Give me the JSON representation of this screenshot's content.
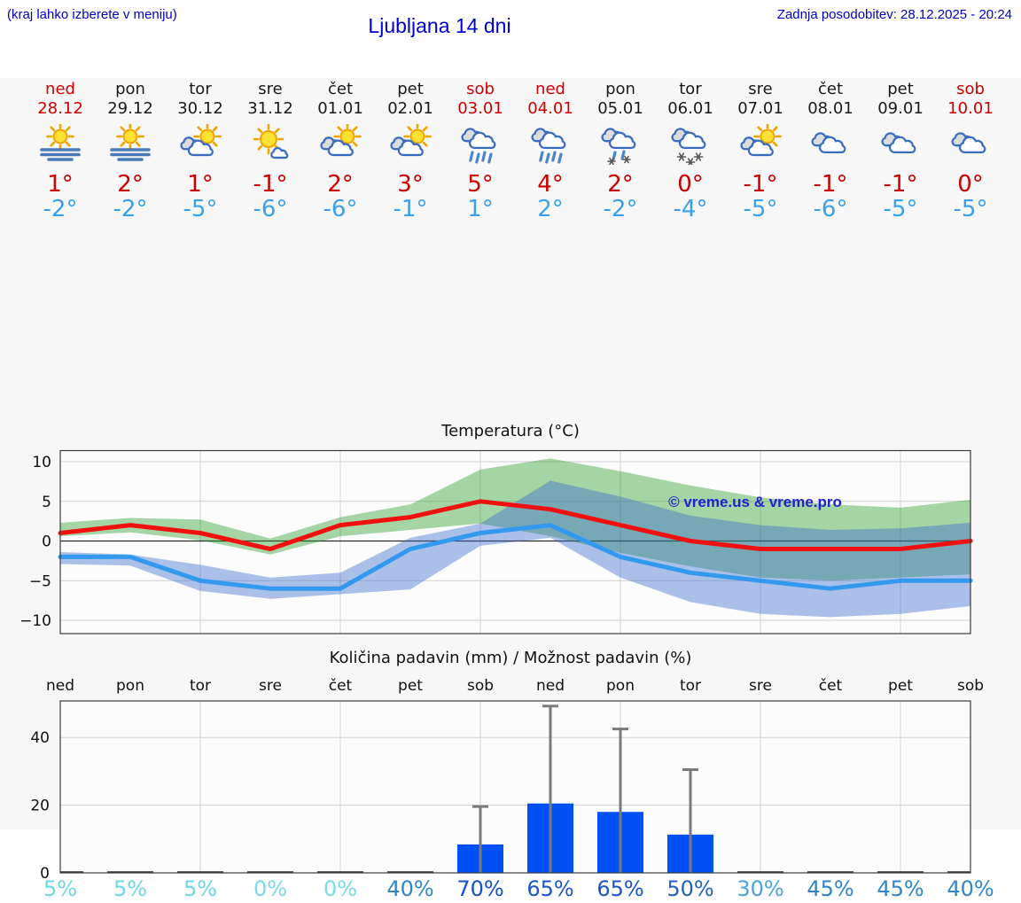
{
  "header": {
    "hint": "(kraj lahko izberete v meniju)",
    "title": "Ljubljana 14 dni",
    "updated": "Zadnja posodobitev: 28.12.2025 - 20:24",
    "text_color": "#0000cc"
  },
  "colors": {
    "weekend_red": "#cc0000",
    "tmax_red": "#cc0000",
    "tmin_blue": "#3aa0ee",
    "panel_bg": "#f7f7f8",
    "plot_bg": "#fcfcfc",
    "grid": "#cfcfcf",
    "frame": "#3c3c3c"
  },
  "days": [
    {
      "name": "ned",
      "date": "28.12",
      "weekend": true,
      "icon": "fog",
      "tmax": "1°",
      "tmin": "-2°"
    },
    {
      "name": "pon",
      "date": "29.12",
      "weekend": false,
      "icon": "fog",
      "tmax": "2°",
      "tmin": "-2°"
    },
    {
      "name": "tor",
      "date": "30.12",
      "weekend": false,
      "icon": "partly-cloudy",
      "tmax": "1°",
      "tmin": "-5°"
    },
    {
      "name": "sre",
      "date": "31.12",
      "weekend": false,
      "icon": "mostly-sunny",
      "tmax": "-1°",
      "tmin": "-6°"
    },
    {
      "name": "čet",
      "date": "01.01",
      "weekend": false,
      "icon": "partly-cloudy",
      "tmax": "2°",
      "tmin": "-6°"
    },
    {
      "name": "pet",
      "date": "02.01",
      "weekend": false,
      "icon": "partly-cloudy",
      "tmax": "3°",
      "tmin": "-1°"
    },
    {
      "name": "sob",
      "date": "03.01",
      "weekend": true,
      "icon": "rain",
      "tmax": "5°",
      "tmin": "1°"
    },
    {
      "name": "ned",
      "date": "04.01",
      "weekend": true,
      "icon": "rain",
      "tmax": "4°",
      "tmin": "2°"
    },
    {
      "name": "pon",
      "date": "05.01",
      "weekend": false,
      "icon": "sleet",
      "tmax": "2°",
      "tmin": "-2°"
    },
    {
      "name": "tor",
      "date": "06.01",
      "weekend": false,
      "icon": "snow",
      "tmax": "0°",
      "tmin": "-4°"
    },
    {
      "name": "sre",
      "date": "07.01",
      "weekend": false,
      "icon": "partly-cloudy",
      "tmax": "-1°",
      "tmin": "-5°"
    },
    {
      "name": "čet",
      "date": "08.01",
      "weekend": false,
      "icon": "cloudy",
      "tmax": "-1°",
      "tmin": "-6°"
    },
    {
      "name": "pet",
      "date": "09.01",
      "weekend": false,
      "icon": "cloudy",
      "tmax": "-1°",
      "tmin": "-5°"
    },
    {
      "name": "sob",
      "date": "10.01",
      "weekend": true,
      "icon": "cloudy",
      "tmax": "0°",
      "tmin": "-5°"
    }
  ],
  "chart_data": [
    {
      "type": "line",
      "title": "Temperatura (°C)",
      "watermark": "© vreme.us & vreme.pro",
      "watermark_color": "#2222cc",
      "x_days": [
        "ned 28.12",
        "pon 29.12",
        "tor 30.12",
        "sre 31.12",
        "čet 01.01",
        "pet 02.01",
        "sob 03.01",
        "ned 04.01",
        "pon 05.01",
        "tor 06.01",
        "sre 07.01",
        "čet 08.01",
        "pet 09.01",
        "sob 10.01"
      ],
      "ylim": [
        -11.6,
        11.4
      ],
      "yticks": [
        10,
        5,
        0,
        -5,
        -10
      ],
      "grid_day_indices": [
        2,
        4,
        6,
        8,
        10,
        12
      ],
      "series": [
        {
          "name": "max-temp",
          "color": "#f01010",
          "values": [
            1,
            2,
            1,
            -1,
            2,
            3,
            5,
            4,
            2,
            0,
            -1,
            -1,
            -1,
            0
          ]
        },
        {
          "name": "min-temp",
          "color": "#3399ee",
          "values": [
            -2,
            -2,
            -5,
            -6,
            -6,
            -1,
            1,
            2,
            -2,
            -4,
            -5,
            -6,
            -5,
            -5
          ]
        }
      ],
      "bands": [
        {
          "name": "max-spread",
          "color": "rgba(34,153,34,0.4)",
          "hi": [
            2.3,
            2.9,
            2.7,
            0.3,
            3.0,
            4.6,
            9.0,
            10.4,
            8.8,
            7.0,
            5.5,
            4.6,
            4.2,
            5.2
          ],
          "lo": [
            0.6,
            1.1,
            0.1,
            -1.7,
            0.6,
            1.4,
            2.2,
            0.6,
            -1.5,
            -3.2,
            -4.6,
            -5.0,
            -4.6,
            -4.2
          ]
        },
        {
          "name": "min-spread",
          "color": "rgba(51,102,204,0.4)",
          "hi": [
            -1.4,
            -1.7,
            -3.0,
            -4.6,
            -4.0,
            0.4,
            2.2,
            7.6,
            5.6,
            3.2,
            2.0,
            1.4,
            1.6,
            2.3
          ],
          "lo": [
            -2.9,
            -3.1,
            -6.3,
            -7.3,
            -6.7,
            -6.1,
            -0.6,
            0.4,
            -4.6,
            -7.7,
            -9.2,
            -9.6,
            -9.2,
            -8.2
          ]
        }
      ]
    },
    {
      "type": "bar",
      "title": "Količina padavin (mm) / Možnost padavin (%)",
      "categories": [
        "ned",
        "pon",
        "tor",
        "sre",
        "čet",
        "pet",
        "sob",
        "ned",
        "pon",
        "tor",
        "sre",
        "čet",
        "pet",
        "sob"
      ],
      "values_mm": [
        0,
        0,
        0,
        0,
        0,
        0,
        8.4,
        20.5,
        18,
        11.3,
        0,
        0,
        0,
        0
      ],
      "whisker_max_mm": [
        null,
        null,
        null,
        null,
        null,
        null,
        19.6,
        49.3,
        42.5,
        30.5,
        null,
        null,
        null,
        null
      ],
      "ylim": [
        0,
        50.8
      ],
      "yticks": [
        0,
        20,
        40
      ],
      "grid_day_indices": [
        2,
        4,
        6,
        8,
        10,
        12
      ],
      "bar_color": "#0051f5",
      "zero_mark_color": "#3a3a3a",
      "whisker_color": "#7a7a7a",
      "probability": {
        "labels": [
          "5%",
          "5%",
          "5%",
          "0%",
          "0%",
          "40%",
          "70%",
          "65%",
          "65%",
          "50%",
          "30%",
          "45%",
          "45%",
          "40%"
        ],
        "colors": [
          "#6fd6e6",
          "#6fd6e6",
          "#6fd6e6",
          "#7adbe8",
          "#7adbe8",
          "#2e86c8",
          "#1450cc",
          "#1a57c6",
          "#1a57c6",
          "#2263c2",
          "#4aa2dc",
          "#2e85ca",
          "#2e85ca",
          "#2f88c8"
        ]
      }
    }
  ]
}
